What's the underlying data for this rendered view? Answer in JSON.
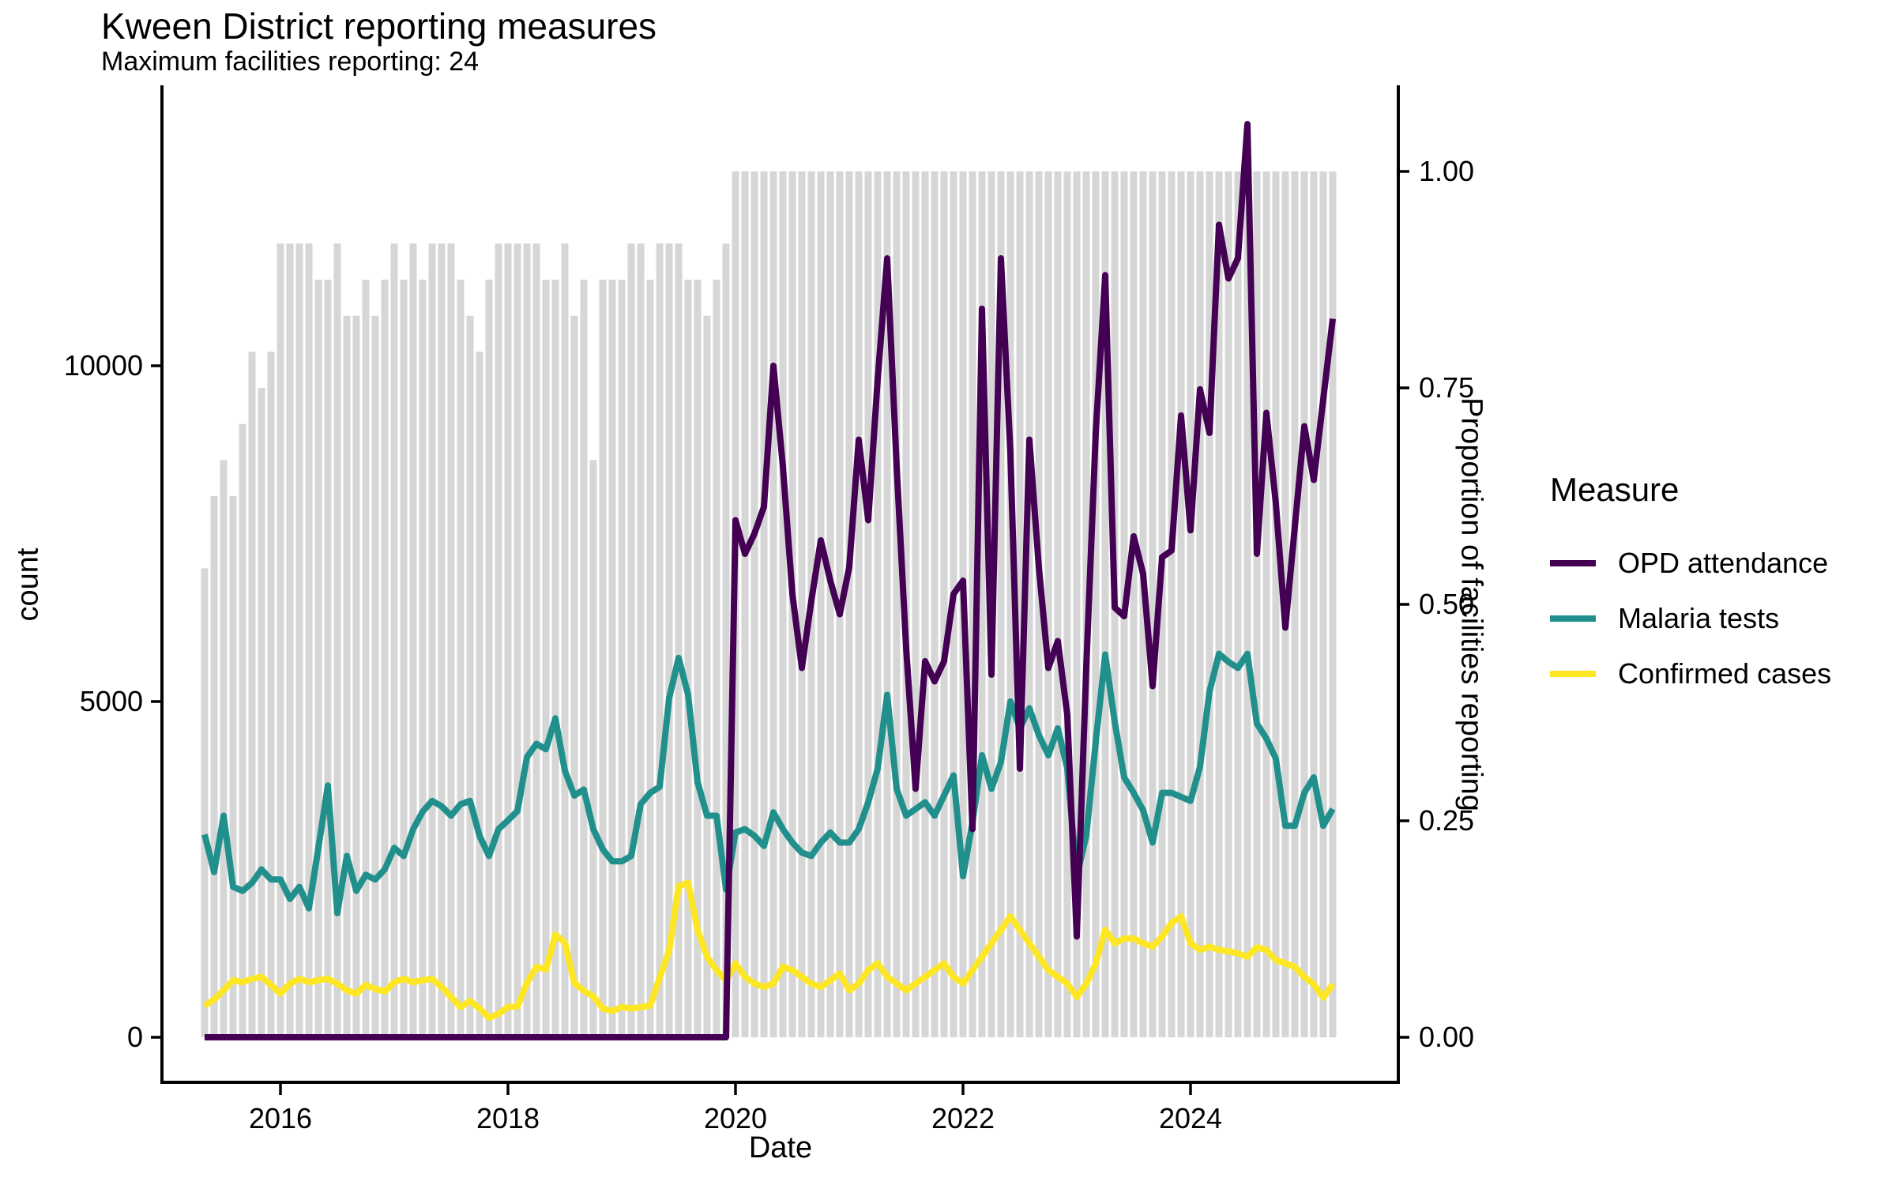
{
  "header": {
    "title": "Kween District reporting measures",
    "subtitle": "Maximum facilities reporting: 24"
  },
  "legend": {
    "title": "Measure",
    "items": [
      {
        "label": "OPD attendance",
        "color": "#440154"
      },
      {
        "label": "Malaria tests",
        "color": "#21908C"
      },
      {
        "label": "Confirmed cases",
        "color": "#FDE725"
      }
    ]
  },
  "chart_data": {
    "type": "line",
    "title": "Kween District reporting measures",
    "subtitle": "Maximum facilities reporting: 24",
    "x_start_month": "2015-05",
    "x_end_month": "2025-04",
    "months_n": 120,
    "x_axis": {
      "label": "Date",
      "tick_years": [
        2016,
        2018,
        2020,
        2022,
        2024
      ]
    },
    "left_axis": {
      "label": "count",
      "ticks": [
        0,
        5000,
        10000
      ],
      "range": [
        0,
        14200
      ]
    },
    "right_axis": {
      "label": "Proportion of facilities reporting",
      "ticks": [
        0,
        0.25,
        0.5,
        0.75,
        1
      ],
      "range": [
        0,
        1.1
      ]
    },
    "grid": "off",
    "legend_position": "right",
    "colors": {
      "bar": "#D6D6D6",
      "axis": "#000000"
    },
    "bars": {
      "name": "Proportion of facilities reporting",
      "max_facilities": 24,
      "facilities_reporting": [
        13,
        15,
        16,
        15,
        17,
        19,
        18,
        19,
        22,
        22,
        22,
        22,
        21,
        21,
        22,
        20,
        20,
        21,
        20,
        21,
        22,
        21,
        22,
        21,
        22,
        22,
        22,
        21,
        20,
        19,
        21,
        22,
        22,
        22,
        22,
        22,
        21,
        21,
        22,
        20,
        21,
        16,
        21,
        21,
        21,
        22,
        22,
        21,
        22,
        22,
        22,
        21,
        21,
        20,
        21,
        22,
        24,
        24,
        24,
        24,
        24,
        24,
        24,
        24,
        24,
        24,
        24,
        24,
        24,
        24,
        24,
        24,
        24,
        24,
        24,
        24,
        24,
        24,
        24,
        24,
        24,
        24,
        24,
        24,
        24,
        24,
        24,
        24,
        24,
        24,
        24,
        24,
        24,
        24,
        24,
        24,
        24,
        24,
        24,
        24,
        24,
        24,
        24,
        24,
        24,
        24,
        24,
        24,
        24,
        24,
        24,
        24,
        24,
        24,
        24,
        24,
        24,
        24,
        24,
        24
      ]
    },
    "series": [
      {
        "name": "OPD attendance",
        "color": "#440154",
        "values": [
          0,
          0,
          0,
          0,
          0,
          0,
          0,
          0,
          0,
          0,
          0,
          0,
          0,
          0,
          0,
          0,
          0,
          0,
          0,
          0,
          0,
          0,
          0,
          0,
          0,
          0,
          0,
          0,
          0,
          0,
          0,
          0,
          0,
          0,
          0,
          0,
          0,
          0,
          0,
          0,
          0,
          0,
          0,
          0,
          0,
          0,
          0,
          0,
          0,
          0,
          0,
          0,
          0,
          0,
          0,
          0,
          7700,
          7200,
          7500,
          7900,
          10000,
          8500,
          6600,
          5500,
          6500,
          7400,
          6800,
          6300,
          7000,
          8900,
          7700,
          9800,
          11600,
          8500,
          5800,
          3700,
          5600,
          5300,
          5600,
          6600,
          6800,
          3100,
          10850,
          5400,
          11600,
          8700,
          4000,
          8900,
          7000,
          5500,
          5900,
          4800,
          1500,
          5500,
          9000,
          11350,
          6400,
          6270,
          7460,
          6900,
          5230,
          7150,
          7250,
          9260,
          7550,
          9650,
          9000,
          12100,
          11300,
          11600,
          13600,
          7200,
          9300,
          7950,
          6100,
          7600,
          9100,
          8300,
          9500,
          10700
        ]
      },
      {
        "name": "Malaria tests",
        "color": "#21908C",
        "values": [
          3020,
          2460,
          3300,
          2240,
          2180,
          2300,
          2500,
          2350,
          2350,
          2060,
          2240,
          1920,
          2820,
          3750,
          1850,
          2700,
          2180,
          2420,
          2350,
          2500,
          2820,
          2700,
          3100,
          3360,
          3520,
          3440,
          3300,
          3470,
          3520,
          3000,
          2700,
          3100,
          3230,
          3370,
          4170,
          4370,
          4290,
          4750,
          3970,
          3600,
          3690,
          3100,
          2800,
          2620,
          2620,
          2700,
          3470,
          3640,
          3730,
          5050,
          5650,
          5100,
          3800,
          3300,
          3300,
          2200,
          3050,
          3100,
          3000,
          2850,
          3350,
          3100,
          2900,
          2750,
          2700,
          2900,
          3050,
          2900,
          2900,
          3100,
          3500,
          4000,
          5100,
          3700,
          3300,
          3400,
          3500,
          3300,
          3600,
          3900,
          2400,
          3200,
          4200,
          3700,
          4100,
          5000,
          4600,
          4900,
          4500,
          4200,
          4600,
          4000,
          2400,
          3000,
          4400,
          5700,
          4700,
          3870,
          3640,
          3380,
          2900,
          3640,
          3640,
          3580,
          3520,
          4030,
          5150,
          5710,
          5590,
          5500,
          5710,
          4670,
          4450,
          4150,
          3150,
          3150,
          3640,
          3870,
          3150,
          3400
        ]
      },
      {
        "name": "Confirmed cases",
        "color": "#FDE725",
        "values": [
          470,
          560,
          700,
          850,
          820,
          870,
          900,
          780,
          650,
          800,
          870,
          820,
          850,
          870,
          800,
          700,
          650,
          780,
          720,
          680,
          820,
          870,
          820,
          850,
          870,
          750,
          600,
          450,
          540,
          430,
          290,
          350,
          450,
          460,
          810,
          1050,
          1010,
          1530,
          1410,
          810,
          690,
          610,
          430,
          390,
          450,
          430,
          450,
          470,
          890,
          1290,
          2250,
          2300,
          1600,
          1200,
          1000,
          850,
          1100,
          900,
          800,
          750,
          800,
          1050,
          1000,
          900,
          800,
          750,
          850,
          950,
          700,
          800,
          1000,
          1100,
          900,
          800,
          700,
          800,
          900,
          1000,
          1100,
          900,
          800,
          1000,
          1200,
          1400,
          1600,
          1800,
          1600,
          1400,
          1200,
          1000,
          900,
          800,
          600,
          800,
          1100,
          1600,
          1400,
          1470,
          1470,
          1400,
          1350,
          1500,
          1700,
          1800,
          1400,
          1300,
          1350,
          1300,
          1280,
          1250,
          1200,
          1340,
          1300,
          1150,
          1100,
          1050,
          900,
          790,
          590,
          790
        ]
      }
    ]
  }
}
